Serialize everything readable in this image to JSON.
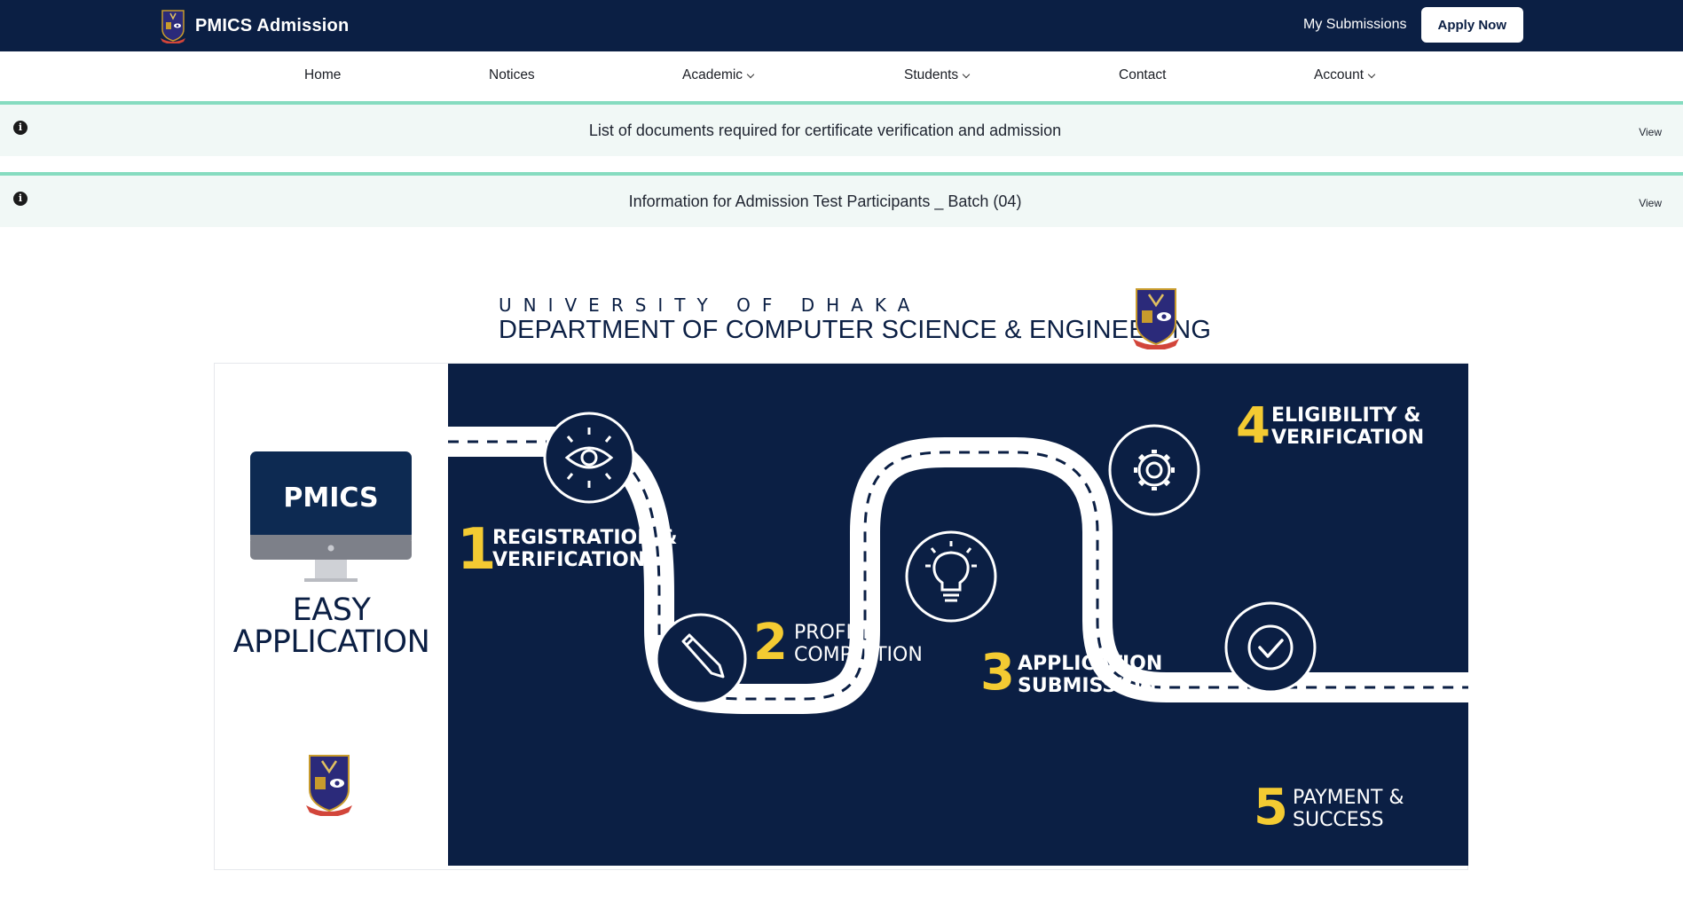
{
  "header": {
    "brand_title": "PMICS Admission",
    "my_submissions": "My Submissions",
    "apply_now": "Apply Now",
    "bg_color": "#0b1f44"
  },
  "nav": {
    "items": [
      {
        "label": "Home",
        "dropdown": false
      },
      {
        "label": "Notices",
        "dropdown": false
      },
      {
        "label": "Academic",
        "dropdown": true
      },
      {
        "label": "Students",
        "dropdown": true
      },
      {
        "label": "Contact",
        "dropdown": false
      },
      {
        "label": "Account",
        "dropdown": true
      }
    ]
  },
  "notices": [
    {
      "text": "List of documents required for certificate verification and admission",
      "action": "View"
    },
    {
      "text": "Information for Admission Test Participants _ Batch (04)",
      "action": "View"
    }
  ],
  "banner": {
    "university": "UNIVERSITY OF DHAKA",
    "department": "DEPARTMENT OF COMPUTER SCIENCE & ENGINEERING",
    "monitor_text": "PMICS",
    "tagline_1": "EASY",
    "tagline_2": "APPLICATION",
    "accent_color": "#f4cb32",
    "steps": [
      {
        "num": "1",
        "line1": "REGISTRATION &",
        "line2": "VERIFICATION",
        "icon": "eye-icon"
      },
      {
        "num": "2",
        "line1": "PROFILE",
        "line2": "COMPLETION",
        "icon": "pencil-icon"
      },
      {
        "num": "3",
        "line1": "APPLICATION",
        "line2": "SUBMISSION",
        "icon": "lightbulb-icon"
      },
      {
        "num": "4",
        "line1": "ELIGIBILITY &",
        "line2": "VERIFICATION",
        "icon": "gear-icon"
      },
      {
        "num": "5",
        "line1": "PAYMENT &",
        "line2": "SUCCESS",
        "icon": "check-icon"
      }
    ]
  }
}
